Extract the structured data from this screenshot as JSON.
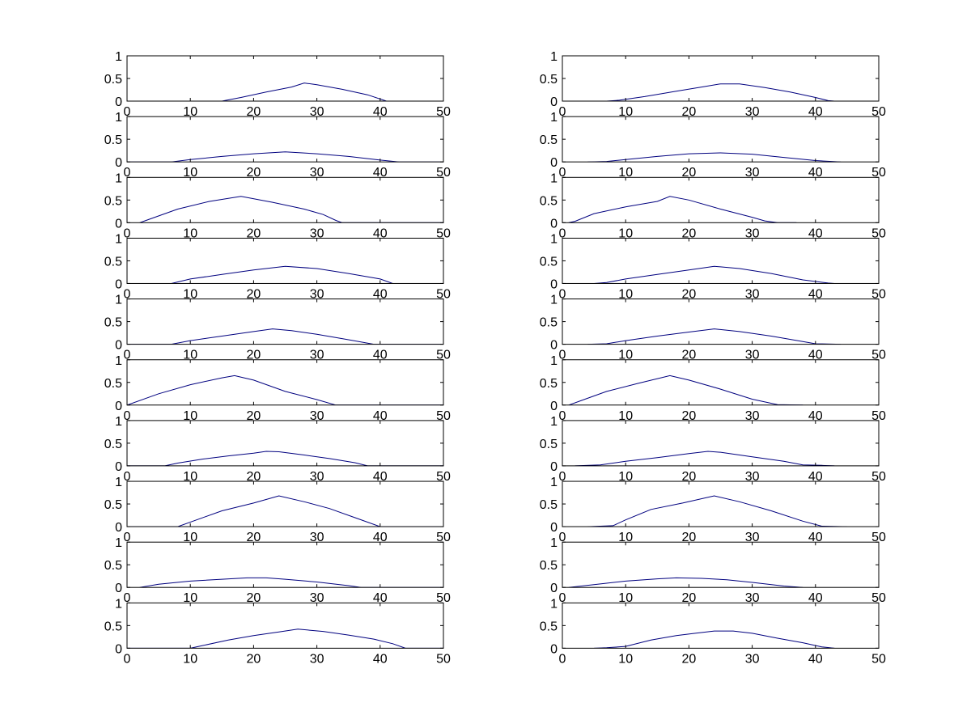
{
  "figure": {
    "background": "#ffffff",
    "line_color": "#00007f",
    "axis_color": "#000000"
  },
  "chart_data": [
    {
      "type": "line",
      "column": "left",
      "row": 1,
      "xlim": [
        0,
        50
      ],
      "ylim": [
        0,
        1
      ],
      "xticks": [
        "0",
        "10",
        "20",
        "30",
        "40",
        "50"
      ],
      "yticks": [
        "0",
        "0.5",
        "1"
      ],
      "x": [
        0,
        15,
        18,
        22,
        26,
        28,
        30,
        34,
        38,
        41,
        50
      ],
      "y": [
        0,
        0,
        0.08,
        0.2,
        0.31,
        0.4,
        0.36,
        0.26,
        0.14,
        0,
        0
      ]
    },
    {
      "type": "line",
      "column": "right",
      "row": 1,
      "xlim": [
        0,
        50
      ],
      "ylim": [
        0,
        1
      ],
      "xticks": [
        "0",
        "10",
        "20",
        "30",
        "40",
        "50"
      ],
      "yticks": [
        "0",
        "0.5",
        "1"
      ],
      "x": [
        7,
        9,
        13,
        18,
        22,
        25,
        28,
        32,
        36,
        40,
        42,
        43
      ],
      "y": [
        0,
        0.02,
        0.1,
        0.22,
        0.31,
        0.38,
        0.38,
        0.3,
        0.2,
        0.08,
        0.01,
        0
      ]
    },
    {
      "type": "line",
      "column": "left",
      "row": 2,
      "xlim": [
        0,
        50
      ],
      "ylim": [
        0,
        1
      ],
      "xticks": [
        "0",
        "10",
        "20",
        "30",
        "40",
        "50"
      ],
      "yticks": [
        "0",
        "0.5",
        "1"
      ],
      "x": [
        0,
        7,
        10,
        15,
        20,
        25,
        30,
        35,
        40,
        43,
        50
      ],
      "y": [
        0,
        0,
        0.05,
        0.12,
        0.18,
        0.22,
        0.18,
        0.12,
        0.04,
        0,
        0
      ]
    },
    {
      "type": "line",
      "column": "right",
      "row": 2,
      "xlim": [
        0,
        50
      ],
      "ylim": [
        0,
        1
      ],
      "xticks": [
        "0",
        "10",
        "20",
        "30",
        "40",
        "50"
      ],
      "yticks": [
        "0",
        "0.5",
        "1"
      ],
      "x": [
        4,
        7,
        10,
        15,
        20,
        25,
        30,
        35,
        40,
        44
      ],
      "y": [
        0,
        0.01,
        0.05,
        0.12,
        0.18,
        0.2,
        0.17,
        0.1,
        0.03,
        0
      ]
    },
    {
      "type": "line",
      "column": "left",
      "row": 3,
      "xlim": [
        0,
        50
      ],
      "ylim": [
        0,
        1
      ],
      "xticks": [
        "0",
        "10",
        "20",
        "30",
        "40",
        "50"
      ],
      "yticks": [
        "0",
        "0.5",
        "1"
      ],
      "x": [
        2,
        3,
        8,
        13,
        18,
        23,
        28,
        31,
        33,
        34,
        50
      ],
      "y": [
        0,
        0.05,
        0.3,
        0.47,
        0.58,
        0.45,
        0.3,
        0.18,
        0.05,
        0,
        0
      ]
    },
    {
      "type": "line",
      "column": "right",
      "row": 3,
      "xlim": [
        0,
        50
      ],
      "ylim": [
        0,
        1
      ],
      "xticks": [
        "0",
        "10",
        "20",
        "30",
        "40",
        "50"
      ],
      "yticks": [
        "0",
        "0.5",
        "1"
      ],
      "x": [
        1,
        2,
        5,
        10,
        15,
        17,
        20,
        25,
        30,
        32,
        34,
        37
      ],
      "y": [
        0,
        0.03,
        0.2,
        0.35,
        0.47,
        0.58,
        0.5,
        0.3,
        0.12,
        0.04,
        0,
        0
      ]
    },
    {
      "type": "line",
      "column": "left",
      "row": 4,
      "xlim": [
        0,
        50
      ],
      "ylim": [
        0,
        1
      ],
      "xticks": [
        "0",
        "10",
        "20",
        "30",
        "40",
        "50"
      ],
      "yticks": [
        "0",
        "0.5",
        "1"
      ],
      "x": [
        0,
        7,
        10,
        15,
        20,
        25,
        30,
        35,
        40,
        42,
        50
      ],
      "y": [
        0,
        0,
        0.1,
        0.2,
        0.3,
        0.38,
        0.33,
        0.22,
        0.1,
        0,
        0
      ]
    },
    {
      "type": "line",
      "column": "right",
      "row": 4,
      "xlim": [
        0,
        50
      ],
      "ylim": [
        0,
        1
      ],
      "xticks": [
        "0",
        "10",
        "20",
        "30",
        "40",
        "50"
      ],
      "yticks": [
        "0",
        "0.5",
        "1"
      ],
      "x": [
        5,
        7,
        10,
        15,
        20,
        24,
        28,
        33,
        38,
        42,
        43
      ],
      "y": [
        0,
        0.02,
        0.1,
        0.2,
        0.3,
        0.38,
        0.33,
        0.22,
        0.08,
        0.01,
        0
      ]
    },
    {
      "type": "line",
      "column": "left",
      "row": 5,
      "xlim": [
        0,
        50
      ],
      "ylim": [
        0,
        1
      ],
      "xticks": [
        "0",
        "10",
        "20",
        "30",
        "40",
        "50"
      ],
      "yticks": [
        "0",
        "0.5",
        "1"
      ],
      "x": [
        0,
        7,
        10,
        15,
        20,
        23,
        26,
        30,
        35,
        39,
        50
      ],
      "y": [
        0,
        0,
        0.08,
        0.18,
        0.28,
        0.34,
        0.3,
        0.22,
        0.1,
        0,
        0
      ]
    },
    {
      "type": "line",
      "column": "right",
      "row": 5,
      "xlim": [
        0,
        50
      ],
      "ylim": [
        0,
        1
      ],
      "xticks": [
        "0",
        "10",
        "20",
        "30",
        "40",
        "50"
      ],
      "yticks": [
        "0",
        "0.5",
        "1"
      ],
      "x": [
        4,
        7,
        10,
        15,
        20,
        24,
        28,
        33,
        38,
        40,
        44
      ],
      "y": [
        0,
        0.01,
        0.08,
        0.18,
        0.27,
        0.34,
        0.28,
        0.18,
        0.06,
        0.01,
        0
      ]
    },
    {
      "type": "line",
      "column": "left",
      "row": 6,
      "xlim": [
        0,
        50
      ],
      "ylim": [
        0,
        1
      ],
      "xticks": [
        "0",
        "10",
        "20",
        "30",
        "40",
        "50"
      ],
      "yticks": [
        "0",
        "0.5",
        "1"
      ],
      "x": [
        0,
        5,
        10,
        15,
        17,
        20,
        25,
        30,
        33,
        50
      ],
      "y": [
        0,
        0.25,
        0.45,
        0.6,
        0.65,
        0.55,
        0.3,
        0.12,
        0,
        0
      ]
    },
    {
      "type": "line",
      "column": "right",
      "row": 6,
      "xlim": [
        0,
        50
      ],
      "ylim": [
        0,
        1
      ],
      "xticks": [
        "0",
        "10",
        "20",
        "30",
        "40",
        "50"
      ],
      "yticks": [
        "0",
        "0.5",
        "1"
      ],
      "x": [
        1,
        3,
        7,
        12,
        17,
        20,
        25,
        30,
        34,
        38
      ],
      "y": [
        0,
        0.1,
        0.3,
        0.48,
        0.65,
        0.55,
        0.35,
        0.13,
        0.01,
        0
      ]
    },
    {
      "type": "line",
      "column": "left",
      "row": 7,
      "xlim": [
        0,
        50
      ],
      "ylim": [
        0,
        1
      ],
      "xticks": [
        "0",
        "10",
        "20",
        "30",
        "40",
        "50"
      ],
      "yticks": [
        "0",
        "0.5",
        "1"
      ],
      "x": [
        0,
        6,
        8,
        12,
        16,
        20,
        22,
        24,
        28,
        32,
        36,
        38,
        50
      ],
      "y": [
        0,
        0,
        0.06,
        0.15,
        0.22,
        0.28,
        0.32,
        0.31,
        0.24,
        0.16,
        0.07,
        0,
        0
      ]
    },
    {
      "type": "line",
      "column": "right",
      "row": 7,
      "xlim": [
        0,
        50
      ],
      "ylim": [
        0,
        1
      ],
      "xticks": [
        "0",
        "10",
        "20",
        "30",
        "40",
        "50"
      ],
      "yticks": [
        "0",
        "0.5",
        "1"
      ],
      "x": [
        2,
        6,
        10,
        15,
        20,
        23,
        25,
        30,
        35,
        38,
        41,
        43
      ],
      "y": [
        0,
        0.02,
        0.1,
        0.18,
        0.27,
        0.32,
        0.3,
        0.2,
        0.1,
        0.02,
        0.01,
        0
      ]
    },
    {
      "type": "line",
      "column": "left",
      "row": 8,
      "xlim": [
        0,
        50
      ],
      "ylim": [
        0,
        1
      ],
      "xticks": [
        "0",
        "10",
        "20",
        "30",
        "40",
        "50"
      ],
      "yticks": [
        "0",
        "0.5",
        "1"
      ],
      "x": [
        0,
        8,
        11,
        15,
        20,
        24,
        28,
        32,
        36,
        40,
        50
      ],
      "y": [
        0,
        0,
        0.15,
        0.35,
        0.52,
        0.68,
        0.55,
        0.4,
        0.2,
        0,
        0
      ]
    },
    {
      "type": "line",
      "column": "right",
      "row": 8,
      "xlim": [
        0,
        50
      ],
      "ylim": [
        0,
        1
      ],
      "xticks": [
        "0",
        "10",
        "20",
        "30",
        "40",
        "50"
      ],
      "yticks": [
        "0",
        "0.5",
        "1"
      ],
      "x": [
        4,
        8,
        10,
        14,
        19,
        24,
        28,
        33,
        38,
        41,
        45
      ],
      "y": [
        0,
        0.02,
        0.15,
        0.38,
        0.52,
        0.68,
        0.55,
        0.35,
        0.12,
        0.01,
        0
      ]
    },
    {
      "type": "line",
      "column": "left",
      "row": 9,
      "xlim": [
        0,
        50
      ],
      "ylim": [
        0,
        1
      ],
      "xticks": [
        "0",
        "10",
        "20",
        "30",
        "40",
        "50"
      ],
      "yticks": [
        "0",
        "0.5",
        "1"
      ],
      "x": [
        2,
        5,
        10,
        15,
        19,
        22,
        25,
        30,
        35,
        37,
        50
      ],
      "y": [
        0,
        0.07,
        0.14,
        0.18,
        0.21,
        0.21,
        0.18,
        0.12,
        0.04,
        0,
        0
      ]
    },
    {
      "type": "line",
      "column": "right",
      "row": 9,
      "xlim": [
        0,
        50
      ],
      "ylim": [
        0,
        1
      ],
      "xticks": [
        "0",
        "10",
        "20",
        "30",
        "40",
        "50"
      ],
      "yticks": [
        "0",
        "0.5",
        "1"
      ],
      "x": [
        1,
        5,
        10,
        15,
        18,
        22,
        26,
        30,
        35,
        38
      ],
      "y": [
        0,
        0.06,
        0.14,
        0.19,
        0.21,
        0.2,
        0.17,
        0.11,
        0.03,
        0
      ]
    },
    {
      "type": "line",
      "column": "left",
      "row": 10,
      "xlim": [
        0,
        50
      ],
      "ylim": [
        0,
        1
      ],
      "xticks": [
        "0",
        "10",
        "20",
        "30",
        "40",
        "50"
      ],
      "yticks": [
        "0",
        "0.5",
        "1"
      ],
      "x": [
        0,
        10,
        12,
        16,
        20,
        24,
        27,
        31,
        35,
        39,
        42,
        44,
        50
      ],
      "y": [
        0,
        0,
        0.06,
        0.18,
        0.28,
        0.36,
        0.42,
        0.37,
        0.29,
        0.2,
        0.1,
        0,
        0
      ]
    },
    {
      "type": "line",
      "column": "right",
      "row": 10,
      "xlim": [
        0,
        50
      ],
      "ylim": [
        0,
        1
      ],
      "xticks": [
        "0",
        "10",
        "20",
        "30",
        "40",
        "50"
      ],
      "yticks": [
        "0",
        "0.5",
        "1"
      ],
      "x": [
        5,
        7,
        10,
        14,
        18,
        21,
        24,
        27,
        30,
        34,
        38,
        41,
        43
      ],
      "y": [
        0,
        0.01,
        0.04,
        0.18,
        0.28,
        0.33,
        0.38,
        0.38,
        0.33,
        0.22,
        0.12,
        0.03,
        0
      ]
    }
  ]
}
